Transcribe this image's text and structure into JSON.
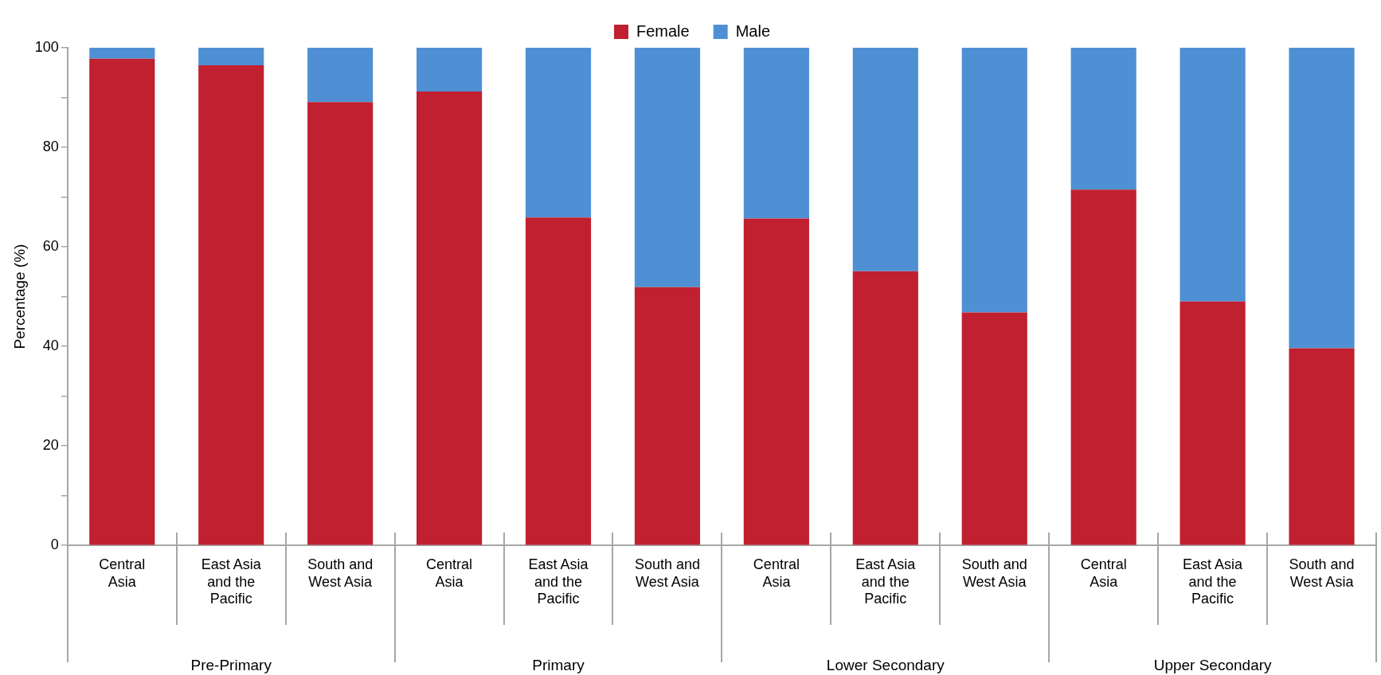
{
  "chart_data": {
    "type": "bar",
    "stacked": true,
    "ylabel": "Percentage (%)",
    "categories": [
      "Central Asia",
      "East Asia and the Pacific",
      "South and West Asia",
      "Central Asia",
      "East Asia and the Pacific",
      "South and West Asia",
      "Central Asia",
      "East Asia and the Pacific",
      "South and West Asia",
      "Central Asia",
      "East Asia and the Pacific",
      "South and West Asia"
    ],
    "series": [
      {
        "name": "Female",
        "color": "#c0202f",
        "values": [
          97.8,
          96.5,
          89.1,
          91.2,
          65.9,
          51.9,
          65.7,
          55.1,
          46.8,
          71.5,
          49.0,
          39.6
        ]
      },
      {
        "name": "Male",
        "color": "#4f90d4",
        "values": [
          2.2,
          3.5,
          10.9,
          8.8,
          34.1,
          48.1,
          34.3,
          44.9,
          53.2,
          28.5,
          51.0,
          60.4
        ]
      }
    ],
    "annotations": [
      "Pre-Primary",
      "Primary",
      "Lower Secondary",
      "Upper Secondary"
    ],
    "ylim": [
      0,
      100
    ],
    "yticks": [
      0,
      {
        "value": 10,
        "label": null
      },
      20,
      {
        "value": 30,
        "label": null
      },
      40,
      {
        "value": 50,
        "label": null
      },
      60,
      {
        "value": 70,
        "label": null
      },
      80,
      {
        "value": 90,
        "label": null
      },
      100
    ],
    "grid": false,
    "legend": "top"
  }
}
